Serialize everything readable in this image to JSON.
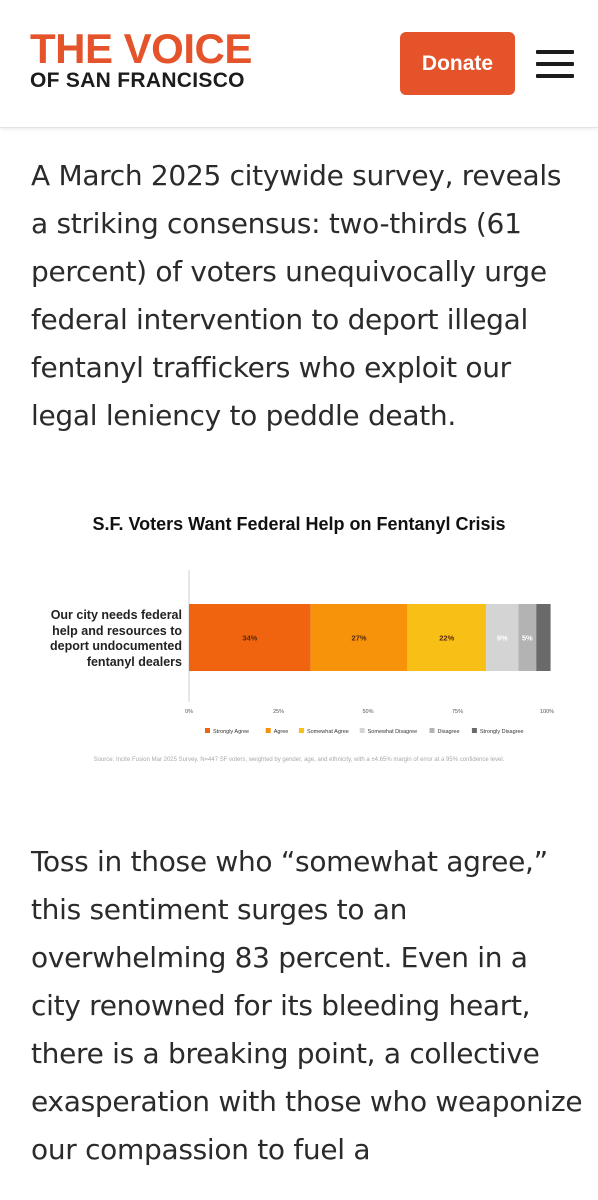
{
  "header": {
    "logo_line1": "THE VOICE",
    "logo_line2": "OF SAN FRANCISCO",
    "donate_label": "Donate",
    "menu_icon": "hamburger-menu-icon"
  },
  "colors": {
    "brand": "#e4532a",
    "strongly_agree": "#f0640f",
    "agree": "#f7930a",
    "somewhat_agree": "#f8bf16",
    "somewhat_disagree": "#d4d4d4",
    "disagree": "#b3b3b3",
    "strongly_disagree": "#6a6a6a"
  },
  "article": {
    "paragraph1": "A March 2025 citywide survey, reveals a striking consensus: two-thirds (61 percent) of voters unequivocally urge federal intervention to deport illegal fentanyl traffickers who exploit our legal leniency to peddle death.",
    "paragraph2": "Toss in those who “somewhat agree,” this sentiment surges to an overwhelming 83 percent. Even in a city renowned for its bleeding heart, there is a breaking point, a collective exasperation with those who weaponize our compassion to fuel a"
  },
  "chart_data": {
    "type": "bar",
    "orientation": "horizontal-stacked",
    "title": "S.F. Voters Want Federal Help on Fentanyl Crisis",
    "categories": [
      "Our city needs federal help and resources to deport undocumented fentanyl dealers"
    ],
    "category_label": "Our city needs federal help and resources to deport undocumented fentanyl dealers",
    "series": [
      {
        "name": "Strongly Agree",
        "values": [
          34
        ],
        "label": "34%",
        "color": "#f0640f"
      },
      {
        "name": "Agree",
        "values": [
          27
        ],
        "label": "27%",
        "color": "#f7930a"
      },
      {
        "name": "Somewhat Agree",
        "values": [
          22
        ],
        "label": "22%",
        "color": "#f8bf16"
      },
      {
        "name": "Somewhat Disagree",
        "values": [
          9
        ],
        "label": "9%",
        "color": "#d4d4d4"
      },
      {
        "name": "Disagree",
        "values": [
          5
        ],
        "label": "5%",
        "color": "#b3b3b3"
      },
      {
        "name": "Strongly Disagree",
        "values": [
          4
        ],
        "label": "",
        "color": "#6a6a6a"
      }
    ],
    "xlim": [
      0,
      100
    ],
    "xticks": [
      "0%",
      "25%",
      "50%",
      "75%",
      "100%"
    ],
    "legend": "bottom",
    "grid": false,
    "source": "Source: Incite Fusion Mar 2025 Survey, N=447 SF voters, weighted by gender, age, and ethnicity, with a ±4.65% margin of error at a 95% confidence level."
  }
}
